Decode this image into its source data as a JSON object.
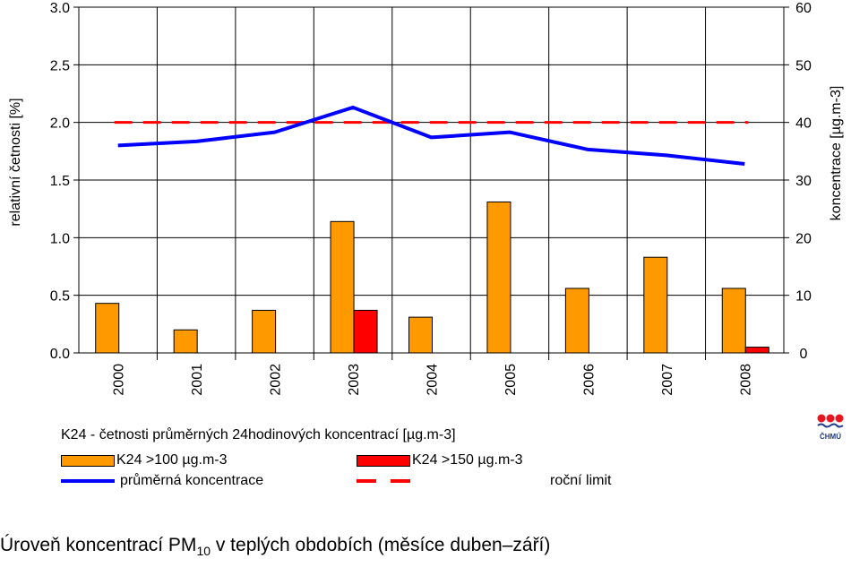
{
  "chart_data": {
    "type": "bar",
    "categories": [
      "2000",
      "2001",
      "2002",
      "2003",
      "2004",
      "2005",
      "2006",
      "2007",
      "2008"
    ],
    "series": [
      {
        "name": "K24 >100 µg.m-3",
        "kind": "bar",
        "axis": "left",
        "color": "#ff9900",
        "values": [
          0.43,
          0.2,
          0.37,
          1.14,
          0.31,
          1.31,
          0.56,
          0.83,
          0.56
        ]
      },
      {
        "name": "K24 >150 µg.m-3",
        "kind": "bar",
        "axis": "left",
        "color": "#ff0000",
        "values": [
          0,
          0,
          0,
          0.37,
          0,
          0,
          0,
          0,
          0.05
        ]
      },
      {
        "name": "průměrná koncentrace",
        "kind": "line",
        "axis": "right",
        "color": "#0000ff",
        "values": [
          36.0,
          36.7,
          38.3,
          42.6,
          37.4,
          38.3,
          35.3,
          34.3,
          32.8
        ]
      },
      {
        "name": "roční limit",
        "kind": "dashed-line",
        "axis": "right",
        "color": "#ff0000",
        "values": [
          40,
          40,
          40,
          40,
          40,
          40,
          40,
          40,
          40
        ]
      }
    ],
    "ylabel": "relativní četnosti [%]",
    "y2label": "koncentrace [µg.m-3]",
    "ylim": [
      0,
      3.0
    ],
    "y2lim": [
      0,
      60
    ],
    "yticks": [
      "0.0",
      "0.5",
      "1.0",
      "1.5",
      "2.0",
      "2.5",
      "3.0"
    ],
    "y2ticks": [
      "0",
      "10",
      "20",
      "30",
      "40",
      "50",
      "60"
    ],
    "grid": true
  },
  "legend": {
    "title": "K24 - četnosti průměrných 24hodinových koncentrací [µg.m-3]",
    "items": [
      {
        "label": "K24 >100 µg.m-3",
        "color": "#ff9900"
      },
      {
        "label": "K24 >150 µg.m-3",
        "color": "#ff0000"
      },
      {
        "label": "průměrná koncentrace",
        "color": "#0000ff"
      },
      {
        "label": "roční limit",
        "color": "#ff0000"
      }
    ]
  },
  "logo_text": "ČHMÚ",
  "caption": {
    "prefix": "Úroveň koncentrací PM",
    "sub": "10",
    "suffix": " v teplých obdobích (měsíce duben–září)"
  }
}
